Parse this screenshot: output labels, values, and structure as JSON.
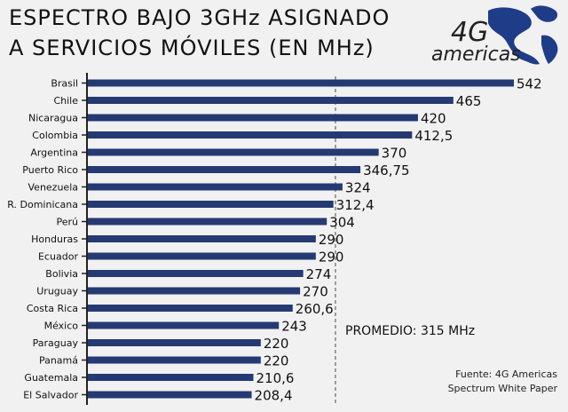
{
  "header": {
    "title_line1": "ESPECTRO BAJO 3GHz ASIGNADO",
    "title_line2": "A SERVICIOS MÓVILES (EN MHz)"
  },
  "logo": {
    "brand_number": "4G",
    "brand_name": "americas",
    "icon": "americas-globe-logo",
    "color": "#1f3c88"
  },
  "source": {
    "line1": "Fuente: 4G Americas",
    "line2": "Spectrum White Paper"
  },
  "colors": {
    "bar": "#253a73",
    "average_line": "#666666",
    "axis": "#222222",
    "background": "#f1f1f1"
  },
  "chart_data": {
    "type": "bar",
    "orientation": "horizontal",
    "title": "ESPECTRO BAJO 3GHz ASIGNADO A SERVICIOS MÓVILES (EN MHz)",
    "categories": [
      "Brasil",
      "Chile",
      "Nicaragua",
      "Colombia",
      "Argentina",
      "Puerto Rico",
      "Venezuela",
      "R. Dominicana",
      "Perú",
      "Honduras",
      "Ecuador",
      "Bolivia",
      "Uruguay",
      "Costa Rica",
      "México",
      "Paraguay",
      "Panamá",
      "Guatemala",
      "El Salvador"
    ],
    "values": [
      542,
      465,
      420,
      412.5,
      370,
      346.75,
      324,
      312.4,
      304,
      290,
      290,
      274,
      270,
      260.6,
      243,
      220,
      220,
      210.6,
      208.4
    ],
    "value_labels": [
      "542",
      "465",
      "420",
      "412,5",
      "370",
      "346,75",
      "324",
      "312,4",
      "304",
      "290",
      "290",
      "274",
      "270",
      "260,6",
      "243",
      "220",
      "220",
      "210,6",
      "208,4"
    ],
    "average": {
      "value": 315,
      "label": "PROMEDIO: 315 MHz",
      "style": "dashed"
    },
    "xlim": [
      0,
      542
    ],
    "grid": false,
    "legend": "none"
  }
}
